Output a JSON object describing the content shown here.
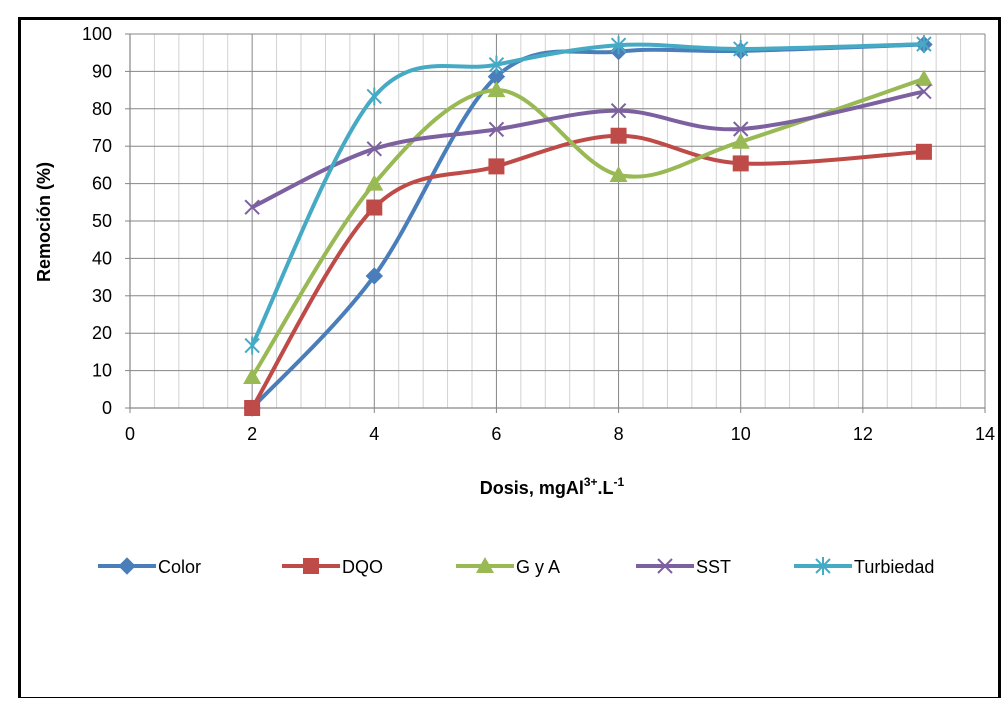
{
  "chart_data": {
    "type": "line",
    "smooth": true,
    "title": "",
    "xlabel": {
      "main": "Dosis, mgAl",
      "sup": "3+",
      "mid": ".L",
      "sup2": "-1"
    },
    "ylabel": "Remoción (%)",
    "xlim": [
      0,
      14
    ],
    "ylim": [
      0,
      100
    ],
    "xticks": [
      0,
      2,
      4,
      6,
      8,
      10,
      12,
      14
    ],
    "yticks": [
      0,
      10,
      20,
      30,
      40,
      50,
      60,
      70,
      80,
      90,
      100
    ],
    "grid": true,
    "legend_position": "bottom",
    "series": [
      {
        "name": "Color",
        "color": "#4a7ebb",
        "marker": "diamond",
        "x": [
          2,
          4,
          6,
          8,
          10,
          13
        ],
        "values": [
          0,
          35.3,
          88.6,
          95.3,
          95.5,
          97.2
        ]
      },
      {
        "name": "DQO",
        "color": "#be4b48",
        "marker": "square",
        "x": [
          2,
          4,
          6,
          8,
          10,
          13
        ],
        "values": [
          0,
          53.6,
          64.6,
          72.8,
          65.4,
          68.5
        ]
      },
      {
        "name": "G y A",
        "color": "#98b954",
        "marker": "triangle",
        "x": [
          2,
          4,
          6,
          8,
          10,
          13
        ],
        "values": [
          8.3,
          60,
          85,
          62.3,
          71.2,
          88
        ]
      },
      {
        "name": "SST",
        "color": "#7d60a0",
        "marker": "x",
        "x": [
          2,
          4,
          6,
          8,
          10,
          13
        ],
        "values": [
          53.7,
          69.3,
          74.5,
          79.5,
          74.6,
          84.6
        ]
      },
      {
        "name": "Turbiedad",
        "color": "#46aac5",
        "marker": "asterisk",
        "x": [
          2,
          4,
          6,
          8,
          10,
          13
        ],
        "values": [
          16.7,
          83.3,
          91.8,
          97,
          96,
          97.3
        ]
      }
    ]
  }
}
